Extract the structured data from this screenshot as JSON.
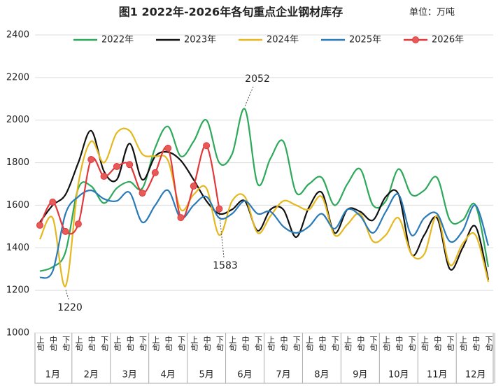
{
  "chart_data": {
    "type": "line",
    "title": "图1  2022年-2026年各旬重点企业钢材库存",
    "unit": "单位：万吨",
    "categories": [
      "上旬",
      "中旬",
      "下旬",
      "上旬",
      "中旬",
      "下旬",
      "上旬",
      "中旬",
      "下旬",
      "上旬",
      "中旬",
      "下旬",
      "上旬",
      "中旬",
      "下旬",
      "上旬",
      "中旬",
      "下旬",
      "上旬",
      "中旬",
      "下旬",
      "上旬",
      "中旬",
      "下旬",
      "上旬",
      "中旬",
      "下旬",
      "上旬",
      "中旬",
      "下旬",
      "上旬",
      "中旬",
      "下旬",
      "上旬",
      "中旬",
      "下旬"
    ],
    "groups": [
      "1月",
      "2月",
      "3月",
      "4月",
      "5月",
      "6月",
      "7月",
      "8月",
      "9月",
      "10月",
      "11月",
      "12月"
    ],
    "ylim": [
      1000,
      2400
    ],
    "yticks": [
      1000,
      1200,
      1400,
      1600,
      1800,
      2000,
      2200,
      2400
    ],
    "grid": true,
    "smooth": true,
    "legend": "top",
    "series": [
      {
        "name": "2022年",
        "color": "#2ea85a",
        "values": [
          1290,
          1310,
          1380,
          1680,
          1690,
          1610,
          1680,
          1710,
          1680,
          1870,
          1970,
          1830,
          1900,
          2000,
          1800,
          1840,
          2052,
          1700,
          1820,
          1900,
          1660,
          1700,
          1730,
          1600,
          1700,
          1770,
          1600,
          1620,
          1770,
          1650,
          1670,
          1730,
          1530,
          1530,
          1600,
          1310
        ]
      },
      {
        "name": "2023年",
        "color": "#111111",
        "values": [
          1520,
          1600,
          1650,
          1800,
          1950,
          1760,
          1720,
          1890,
          1720,
          1830,
          1850,
          1810,
          1720,
          1620,
          1560,
          1580,
          1620,
          1480,
          1580,
          1580,
          1450,
          1590,
          1660,
          1470,
          1580,
          1570,
          1530,
          1640,
          1650,
          1370,
          1460,
          1540,
          1300,
          1400,
          1500,
          1250
        ]
      },
      {
        "name": "2024年",
        "color": "#e6b820",
        "values": [
          1440,
          1540,
          1220,
          1700,
          1900,
          1800,
          1940,
          1950,
          1840,
          1830,
          1810,
          1580,
          1650,
          1680,
          1460,
          1620,
          1640,
          1470,
          1550,
          1620,
          1600,
          1580,
          1640,
          1460,
          1510,
          1560,
          1430,
          1460,
          1540,
          1370,
          1370,
          1550,
          1320,
          1420,
          1460,
          1240
        ]
      },
      {
        "name": "2025年",
        "color": "#2a7ab8",
        "values": [
          1260,
          1290,
          1560,
          1640,
          1670,
          1630,
          1620,
          1660,
          1520,
          1600,
          1670,
          1540,
          1600,
          1640,
          1540,
          1560,
          1620,
          1560,
          1570,
          1500,
          1470,
          1500,
          1560,
          1490,
          1580,
          1550,
          1470,
          1570,
          1650,
          1460,
          1540,
          1560,
          1430,
          1480,
          1600,
          1410
        ]
      },
      {
        "name": "2026年",
        "color": "#e03a3a",
        "markers": true,
        "values": [
          1506,
          1615,
          1477,
          1512,
          1815,
          1736,
          1782,
          1791,
          1657,
          1753,
          1868,
          1542,
          1690,
          1880,
          1583,
          null,
          null,
          null,
          null,
          null,
          null,
          null,
          null,
          null,
          null,
          null,
          null,
          null,
          null,
          null,
          null,
          null,
          null,
          null,
          null,
          null
        ]
      }
    ],
    "annotations": [
      "2052",
      "1220",
      "1583"
    ]
  }
}
